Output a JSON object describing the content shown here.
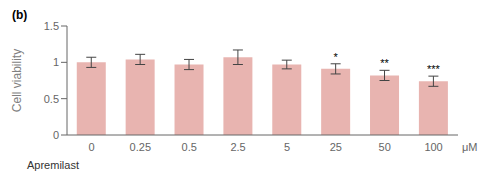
{
  "chart_data": {
    "type": "bar",
    "categories": [
      "0",
      "0.25",
      "0.5",
      "2.5",
      "5",
      "25",
      "50",
      "100"
    ],
    "values": [
      1.0,
      1.04,
      0.97,
      1.07,
      0.97,
      0.91,
      0.82,
      0.74
    ],
    "errors": [
      0.07,
      0.07,
      0.07,
      0.1,
      0.06,
      0.07,
      0.07,
      0.07
    ],
    "color": "#e8b4b0",
    "ylabel": "Cell viability",
    "xlabel": "Apremilast",
    "ylim": [
      0,
      1.5
    ],
    "yticks": [
      0,
      0.5,
      1.0,
      1.5
    ],
    "grid": false,
    "annotations": [
      {
        "text": "(b)"
      },
      {
        "text": "μM"
      },
      {
        "category": "25",
        "text": "*"
      },
      {
        "category": "50",
        "text": "**"
      },
      {
        "category": "100",
        "text": "***"
      }
    ]
  }
}
